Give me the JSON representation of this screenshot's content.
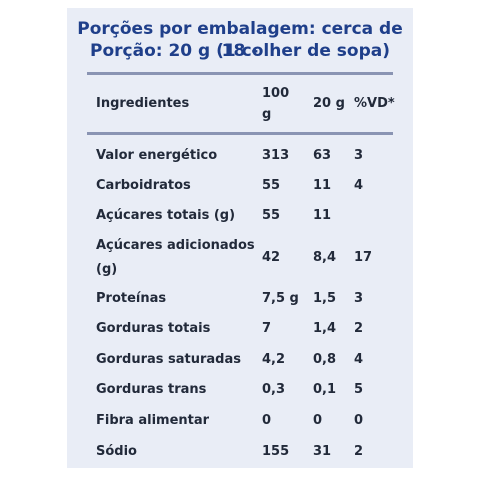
{
  "header": {
    "line1": "Porções por embalagem: cerca de 18 -",
    "line2": "Porção: 20 g (1 colher de sopa)"
  },
  "table": {
    "columns": {
      "name": "Ingredientes",
      "per100_line1": "100",
      "per100_line2": "g",
      "portion": "20 g",
      "vd": "%VD*"
    },
    "rows": [
      {
        "name": "Valor energético",
        "per100": "313",
        "portion": "63",
        "vd": "3"
      },
      {
        "name": "Carboidratos",
        "per100": "55",
        "portion": "11",
        "vd": "4"
      },
      {
        "name": "Açúcares totais (g)",
        "per100": "55",
        "portion": "11",
        "vd": ""
      },
      {
        "name_line1": "Açúcares adicionados",
        "name_line2": "(g)",
        "per100": "42",
        "portion": "8,4",
        "vd": "17"
      },
      {
        "name": "Proteínas",
        "per100": "7,5 g",
        "portion": "1,5",
        "vd": "3"
      },
      {
        "name": "Gorduras totais",
        "per100": "7",
        "portion": "1,4",
        "vd": "2"
      },
      {
        "name": "Gorduras saturadas",
        "per100": "4,2",
        "portion": "0,8",
        "vd": "4"
      },
      {
        "name": "Gorduras trans",
        "per100": "0,3",
        "portion": "0,1",
        "vd": "5"
      },
      {
        "name": "Fibra alimentar",
        "per100": "0",
        "portion": "0",
        "vd": "0"
      },
      {
        "name": "Sódio",
        "per100": "155",
        "portion": "31",
        "vd": "2"
      }
    ]
  }
}
